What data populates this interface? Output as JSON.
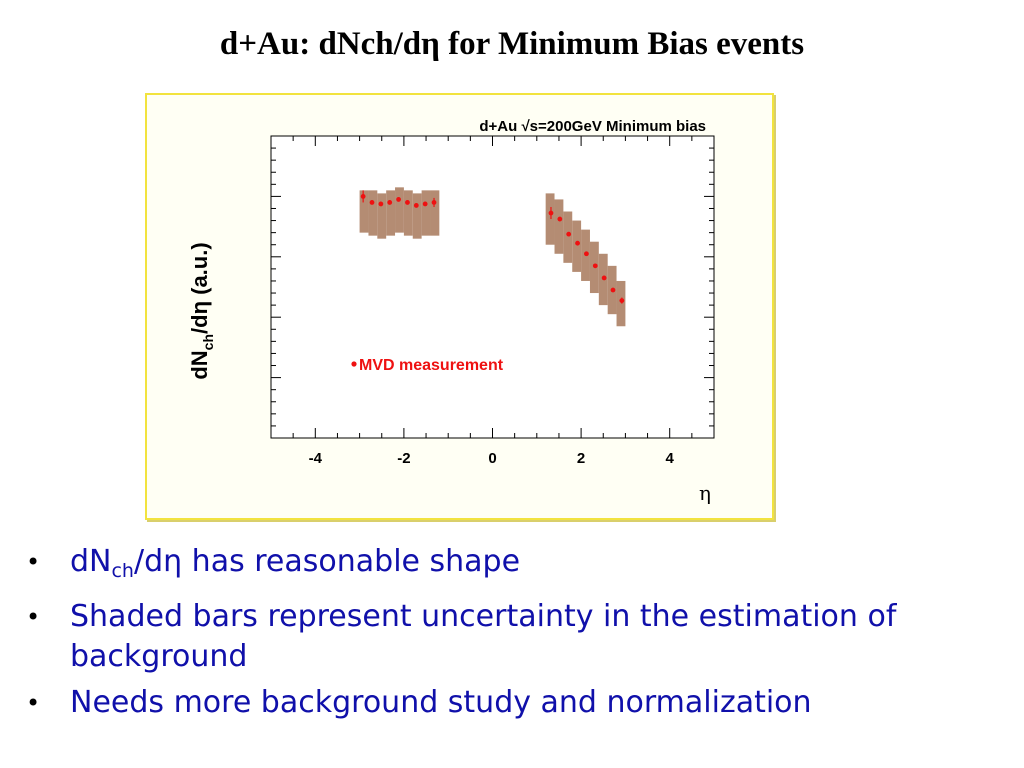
{
  "slide": {
    "title": "d+Au: dNch/dη for Minimum  Bias events"
  },
  "chart_data": {
    "type": "scatter",
    "title": "d+Au √s=200GeV Minimum bias",
    "xlabel": "η",
    "ylabel": "dN_ch/dη (a.u.)",
    "xlim": [
      -5,
      5
    ],
    "ylim": [
      0,
      1
    ],
    "y_tick_labels_shown": false,
    "x_ticks": [
      -4,
      -2,
      0,
      2,
      4
    ],
    "x_tick_labels": [
      "-4",
      "-2",
      "0",
      "2",
      "4"
    ],
    "grid": false,
    "legend": {
      "placement": "center-left",
      "entries": [
        "MVD measurement"
      ]
    },
    "series": [
      {
        "name": "MVD measurement",
        "color": "#ee1111",
        "points": [
          {
            "x": -2.92,
            "y": 0.8,
            "err": 0.02
          },
          {
            "x": -2.72,
            "y": 0.78,
            "err": 0.0
          },
          {
            "x": -2.52,
            "y": 0.775,
            "err": 0.0
          },
          {
            "x": -2.32,
            "y": 0.78,
            "err": 0.0
          },
          {
            "x": -2.12,
            "y": 0.79,
            "err": 0.0
          },
          {
            "x": -1.92,
            "y": 0.78,
            "err": 0.0
          },
          {
            "x": -1.72,
            "y": 0.77,
            "err": 0.0
          },
          {
            "x": -1.52,
            "y": 0.775,
            "err": 0.0
          },
          {
            "x": -1.32,
            "y": 0.78,
            "err": 0.015
          },
          {
            "x": 1.32,
            "y": 0.745,
            "err": 0.02
          },
          {
            "x": 1.52,
            "y": 0.725,
            "err": 0.0
          },
          {
            "x": 1.72,
            "y": 0.675,
            "err": 0.0
          },
          {
            "x": 1.92,
            "y": 0.645,
            "err": 0.0
          },
          {
            "x": 2.12,
            "y": 0.61,
            "err": 0.0
          },
          {
            "x": 2.32,
            "y": 0.57,
            "err": 0.0
          },
          {
            "x": 2.52,
            "y": 0.53,
            "err": 0.0
          },
          {
            "x": 2.72,
            "y": 0.49,
            "err": 0.0
          },
          {
            "x": 2.92,
            "y": 0.455,
            "err": 0.01
          }
        ]
      }
    ],
    "uncertainty_bands": {
      "color": "#b48c73",
      "bins": [
        {
          "x0": -3.0,
          "x1": -2.8,
          "lo": 0.68,
          "hi": 0.82
        },
        {
          "x0": -2.8,
          "x1": -2.6,
          "lo": 0.67,
          "hi": 0.82
        },
        {
          "x0": -2.6,
          "x1": -2.4,
          "lo": 0.66,
          "hi": 0.81
        },
        {
          "x0": -2.4,
          "x1": -2.2,
          "lo": 0.67,
          "hi": 0.82
        },
        {
          "x0": -2.2,
          "x1": -2.0,
          "lo": 0.68,
          "hi": 0.83
        },
        {
          "x0": -2.0,
          "x1": -1.8,
          "lo": 0.67,
          "hi": 0.82
        },
        {
          "x0": -1.8,
          "x1": -1.6,
          "lo": 0.66,
          "hi": 0.81
        },
        {
          "x0": -1.6,
          "x1": -1.4,
          "lo": 0.67,
          "hi": 0.82
        },
        {
          "x0": -1.4,
          "x1": -1.2,
          "lo": 0.67,
          "hi": 0.82
        },
        {
          "x0": 1.2,
          "x1": 1.4,
          "lo": 0.64,
          "hi": 0.81
        },
        {
          "x0": 1.4,
          "x1": 1.6,
          "lo": 0.61,
          "hi": 0.79
        },
        {
          "x0": 1.6,
          "x1": 1.8,
          "lo": 0.58,
          "hi": 0.75
        },
        {
          "x0": 1.8,
          "x1": 2.0,
          "lo": 0.55,
          "hi": 0.72
        },
        {
          "x0": 2.0,
          "x1": 2.2,
          "lo": 0.52,
          "hi": 0.69
        },
        {
          "x0": 2.2,
          "x1": 2.4,
          "lo": 0.48,
          "hi": 0.65
        },
        {
          "x0": 2.4,
          "x1": 2.6,
          "lo": 0.44,
          "hi": 0.61
        },
        {
          "x0": 2.6,
          "x1": 2.8,
          "lo": 0.41,
          "hi": 0.57
        },
        {
          "x0": 2.8,
          "x1": 3.0,
          "lo": 0.37,
          "hi": 0.52
        }
      ]
    }
  },
  "legend_label": "MVD measurement",
  "bullets": [
    {
      "pre": "dN",
      "sub": "ch",
      "post": "/dη has reasonable shape"
    },
    {
      "text": "Shaded bars represent uncertainty in the estimation of background"
    },
    {
      "text": "Needs more background study and normalization"
    }
  ],
  "colors": {
    "bullet_text": "#1010aa",
    "frame_border": "#f2e33e",
    "markers": "#ee1111"
  }
}
